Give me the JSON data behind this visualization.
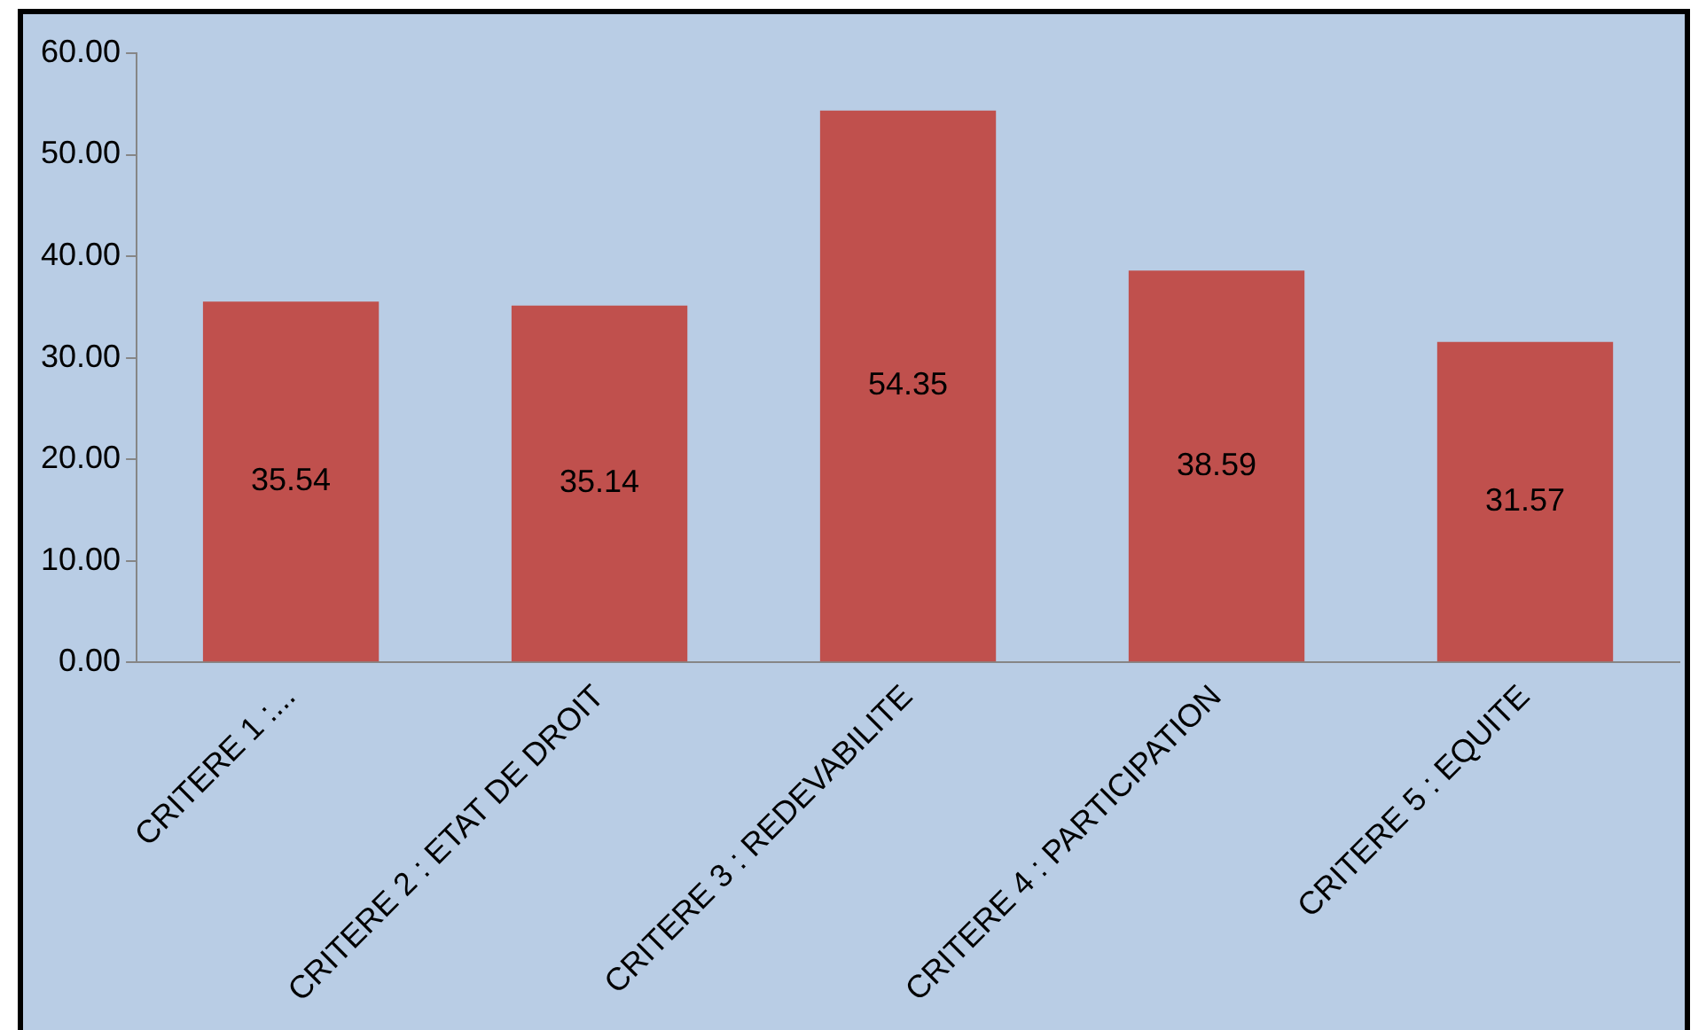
{
  "chart_data": {
    "type": "bar",
    "categories": [
      "CRITERE 1 :...",
      "CRITERE 2 : ETAT DE DROIT",
      "CRITERE 3 : REDEVABILITE",
      "CRITERE 4 : PARTICIPATION",
      "CRITERE 5 : EQUITE"
    ],
    "values": [
      35.54,
      35.14,
      54.35,
      38.59,
      31.57
    ],
    "color": "#c0504d",
    "ylim": [
      0,
      60
    ],
    "yticks": [
      {
        "value": 0,
        "label": "0.00"
      },
      {
        "value": 10,
        "label": "10.00"
      },
      {
        "value": 20,
        "label": "20.00"
      },
      {
        "value": 30,
        "label": "30.00"
      },
      {
        "value": 40,
        "label": "40.00"
      },
      {
        "value": 50,
        "label": "50.00"
      },
      {
        "value": 60,
        "label": "60.00"
      }
    ],
    "grid": false,
    "legend": false,
    "data_labels": true
  }
}
